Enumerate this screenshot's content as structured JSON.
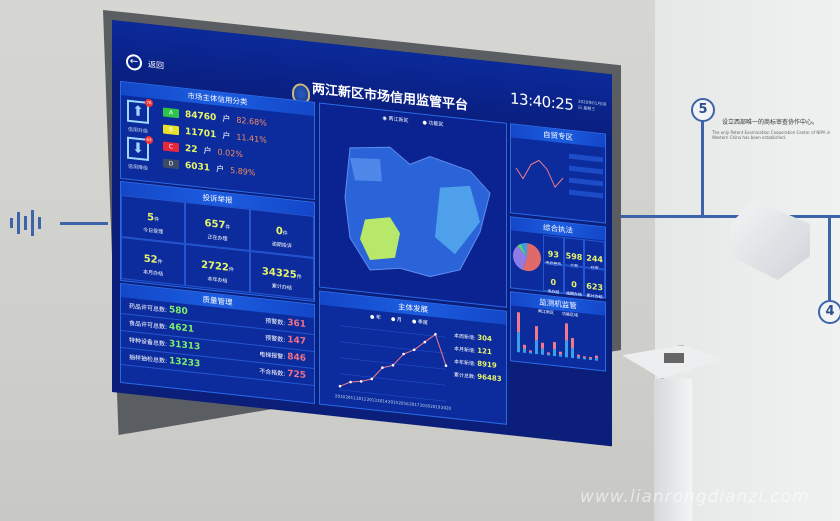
{
  "wall": {
    "step5": "5",
    "step4": "4",
    "caption_cn": "设立西部唯一的商标审查协作中心。",
    "caption_en": "The only Patent Examination Cooperation Center of NIPA in Western China has been established.",
    "watermark": "www.lianrongdianzi.com"
  },
  "header": {
    "back_label": "返回",
    "title": "两江新区市场信用监管平台",
    "clock": "13:40:25",
    "date": "2020年01月08日 星期三"
  },
  "credit": {
    "title": "市场主体信用分类",
    "upgrade_label": "信用升级",
    "upgrade_count": "78",
    "downgrade_label": "信用降级",
    "downgrade_count": "63",
    "grades": [
      {
        "grade": "A",
        "count": "84760",
        "unit": "户",
        "pct": "82.68%",
        "color": "#2ec44a"
      },
      {
        "grade": "B",
        "count": "11701",
        "unit": "户",
        "pct": "11.41%",
        "color": "#e8e02a"
      },
      {
        "grade": "C",
        "count": "22",
        "unit": "户",
        "pct": "0.02%",
        "color": "#e8283a"
      },
      {
        "grade": "D",
        "count": "6031",
        "unit": "户",
        "pct": "5.89%",
        "color": "#3c4a66"
      }
    ]
  },
  "complaints": {
    "title": "投诉举报",
    "unit": "件",
    "cells": [
      {
        "value": "5",
        "label": "今日受理"
      },
      {
        "value": "657",
        "label": "正在办理"
      },
      {
        "value": "0",
        "label": "逾期投诉"
      },
      {
        "value": "52",
        "label": "本月办结"
      },
      {
        "value": "2722",
        "label": "本年办结"
      },
      {
        "value": "34325",
        "label": "累计办结"
      }
    ]
  },
  "quality": {
    "title": "质量管理",
    "left": [
      {
        "label": "药品许可总数:",
        "value": "580"
      },
      {
        "label": "食品许可总数:",
        "value": "4621"
      },
      {
        "label": "特种设备总数:",
        "value": "31313"
      },
      {
        "label": "抽样抽检总数:",
        "value": "13233"
      }
    ],
    "right": [
      {
        "label": "预警数:",
        "value": "361"
      },
      {
        "label": "预警数:",
        "value": "147"
      },
      {
        "label": "电梯报警:",
        "value": "846"
      },
      {
        "label": "不合格数:",
        "value": "725"
      }
    ]
  },
  "map": {
    "legend": [
      "两江新区",
      "功能区"
    ]
  },
  "growth": {
    "title": "主体发展",
    "legend": [
      "年",
      "月",
      "季度"
    ],
    "stats": [
      {
        "label": "本周新增:",
        "value": "304"
      },
      {
        "label": "本月新增:",
        "value": "121"
      },
      {
        "label": "本年新增:",
        "value": "8919"
      },
      {
        "label": "累计总数:",
        "value": "96483"
      }
    ]
  },
  "air": {
    "title": "自贸专区"
  },
  "enforce": {
    "title": "综合执法",
    "cells": [
      {
        "value": "93",
        "label": "审批服务"
      },
      {
        "value": "598",
        "label": "立案"
      },
      {
        "value": "244",
        "label": "结案"
      },
      {
        "value": "0",
        "label": "未办结"
      },
      {
        "value": "0",
        "label": "逾期办结"
      },
      {
        "value": "623",
        "label": "累计办结"
      }
    ],
    "pie": [
      {
        "name": "A",
        "value": 55,
        "color": "#e06a6a"
      },
      {
        "name": "B",
        "value": 33,
        "color": "#8f7ae8"
      },
      {
        "name": "C",
        "value": 5,
        "color": "#5fd07a"
      },
      {
        "name": "D",
        "value": 7,
        "color": "#3a9ee8"
      }
    ]
  },
  "monitor": {
    "title": "监测机监管",
    "legend": [
      "两江新区",
      "功能区域"
    ]
  },
  "chart_data": {
    "type": "line",
    "x": [
      "2010",
      "2011",
      "2012",
      "2013",
      "2014",
      "2015",
      "2016",
      "2017",
      "2018",
      "2019",
      "2020"
    ],
    "values": [
      1000,
      2500,
      3000,
      4000,
      7500,
      8500,
      12000,
      13500,
      16000,
      18500,
      10000
    ],
    "ylim": [
      0,
      18000
    ],
    "color": "#f07a8a"
  },
  "colors": {
    "screen_bg": "#0a1e7a",
    "panel": "#0c2c9e",
    "accent": "#2b6ae6"
  }
}
